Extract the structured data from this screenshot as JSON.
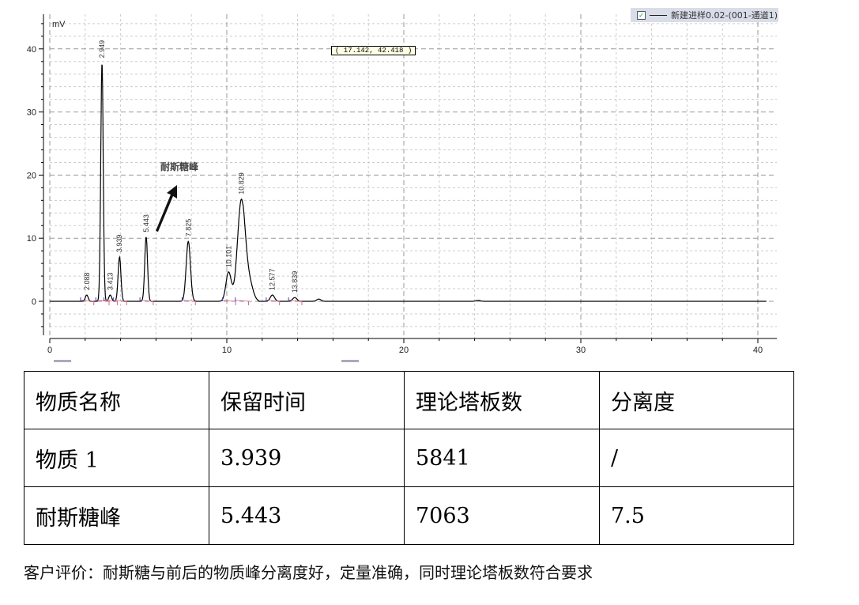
{
  "chart_data": {
    "type": "line",
    "ylabel_unit": "mV",
    "xlim": [
      0,
      41
    ],
    "ylim": [
      -6,
      45
    ],
    "x_ticks": [
      0,
      10,
      20,
      30,
      40
    ],
    "y_ticks": [
      0,
      10,
      20,
      30,
      40
    ],
    "grid": true,
    "peaks": [
      {
        "rt": 2.088,
        "label": "2.088",
        "height": 1.0
      },
      {
        "rt": 2.949,
        "label": "2.949",
        "height": 37.8
      },
      {
        "rt": 3.413,
        "label": "3.413",
        "height": 1.0
      },
      {
        "rt": 3.939,
        "label": "3.939",
        "height": 7.0
      },
      {
        "rt": 5.443,
        "label": "5.443",
        "height": 10.2
      },
      {
        "rt": 7.825,
        "label": "7.825",
        "height": 9.5
      },
      {
        "rt": 10.101,
        "label": "10.101",
        "height": 4.6
      },
      {
        "rt": 10.829,
        "label": "10.829",
        "height": 16.2
      },
      {
        "rt": 12.577,
        "label": "12.577",
        "height": 1.0
      },
      {
        "rt": 13.839,
        "label": "13.839",
        "height": 0.6
      }
    ],
    "legend": "新建进样0.02-(001-通道1)",
    "legend_position": "top-right",
    "cursor_readout": "( 17.142,  42.418 )",
    "annotation": "耐斯糖峰",
    "line_color": "#000000",
    "baseline_color": "#e06080"
  },
  "table": {
    "headers": [
      "物质名称",
      "保留时间",
      "理论塔板数",
      "分离度"
    ],
    "rows": [
      [
        "物质 1",
        "3.939",
        "5841",
        "/"
      ],
      [
        "耐斯糖峰",
        "5.443",
        "7063",
        "7.5"
      ]
    ]
  },
  "footer": "客户评价：耐斯糖与前后的物质峰分离度好，定量准确，同时理论塔板数符合要求"
}
